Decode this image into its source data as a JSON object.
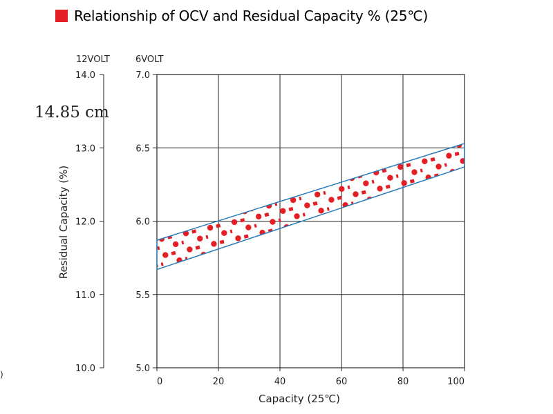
{
  "title": "Relationship of OCV and Residual Capacity % (25℃)",
  "annotation": "14.85 cm",
  "stray_mark": ")",
  "colors": {
    "accent": "#e31e24",
    "band_outline": "#2a7ab8",
    "grid": "#222222"
  },
  "icons": {
    "title_marker": "red-square-icon"
  },
  "chart_data": {
    "type": "area",
    "title": "Relationship of OCV and Residual Capacity % (25℃)",
    "xlabel": "Capacity (25℃)",
    "ylabel": "Residual Capacity (%)",
    "left_axis_unit": "12VOLT",
    "right_axis_unit": "6VOLT",
    "xlim": [
      0,
      100
    ],
    "ylim": [
      5.0,
      7.0
    ],
    "x_ticks": [
      "0",
      "20",
      "40",
      "60",
      "80",
      "100"
    ],
    "y_ticks_12v": [
      "10.0",
      "11.0",
      "12.0",
      "13.0",
      "14.0"
    ],
    "y_ticks_6v": [
      "5.0",
      "5.5",
      "6.0",
      "6.5",
      "7.0"
    ],
    "grid": true,
    "band": {
      "x": [
        0,
        100
      ],
      "upper_6v": [
        5.87,
        6.53
      ],
      "lower_6v": [
        5.67,
        6.37
      ],
      "fill": "red hatched pattern"
    }
  }
}
